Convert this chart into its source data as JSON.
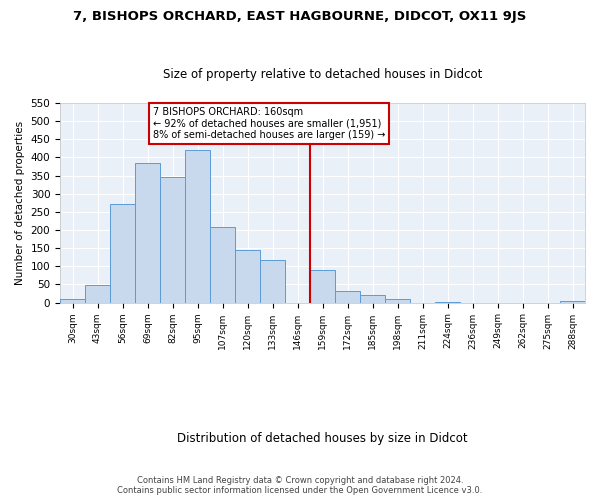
{
  "title": "7, BISHOPS ORCHARD, EAST HAGBOURNE, DIDCOT, OX11 9JS",
  "subtitle": "Size of property relative to detached houses in Didcot",
  "xlabel": "Distribution of detached houses by size in Didcot",
  "ylabel": "Number of detached properties",
  "bar_labels": [
    "30sqm",
    "43sqm",
    "56sqm",
    "69sqm",
    "82sqm",
    "95sqm",
    "107sqm",
    "120sqm",
    "133sqm",
    "146sqm",
    "159sqm",
    "172sqm",
    "185sqm",
    "198sqm",
    "211sqm",
    "224sqm",
    "236sqm",
    "249sqm",
    "262sqm",
    "275sqm",
    "288sqm"
  ],
  "bar_heights": [
    11,
    48,
    273,
    385,
    347,
    420,
    209,
    144,
    118,
    0,
    90,
    31,
    20,
    11,
    0,
    2,
    0,
    0,
    0,
    0,
    3
  ],
  "bar_color": "#c9d9ed",
  "bar_edge_color": "#5b9bd5",
  "annotation_title": "7 BISHOPS ORCHARD: 160sqm",
  "annotation_line1": "← 92% of detached houses are smaller (1,951)",
  "annotation_line2": "8% of semi-detached houses are larger (159) →",
  "annotation_box_color": "#ffffff",
  "annotation_box_edge_color": "#cc0000",
  "vline_color": "#cc0000",
  "ylim": [
    0,
    550
  ],
  "yticks": [
    0,
    50,
    100,
    150,
    200,
    250,
    300,
    350,
    400,
    450,
    500,
    550
  ],
  "footer_line1": "Contains HM Land Registry data © Crown copyright and database right 2024.",
  "footer_line2": "Contains public sector information licensed under the Open Government Licence v3.0.",
  "bg_color": "#eaf0f8",
  "fig_bg_color": "#ffffff",
  "grid_color": "#ffffff",
  "spine_color": "#c0c0c0"
}
